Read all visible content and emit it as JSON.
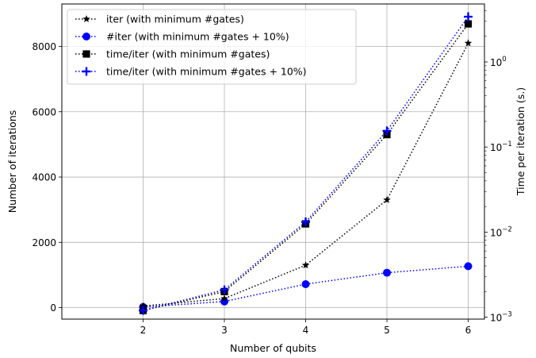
{
  "chart_data": {
    "type": "line",
    "title": "",
    "xlabel": "Number of qubits",
    "ylabel": "Number of iterations",
    "y2label": "Time per iteration (s.)",
    "x": [
      2,
      3,
      4,
      5,
      6
    ],
    "x_ticks": [
      "2",
      "3",
      "4",
      "5",
      "6"
    ],
    "xlim": [
      1.0,
      6.2
    ],
    "ylim": [
      -350,
      9300
    ],
    "y_ticks": [
      "0",
      "2000",
      "4000",
      "6000",
      "8000"
    ],
    "y2_scale": "log",
    "y2lim": [
      0.00095,
      4.8
    ],
    "y2_ticks": [
      {
        "base": "10",
        "exp": "−3"
      },
      {
        "base": "10",
        "exp": "−2"
      },
      {
        "base": "10",
        "exp": "−1"
      },
      {
        "base": "10",
        "exp": "0"
      }
    ],
    "grid": true,
    "legend_position": "top-left",
    "series": [
      {
        "name": "iter (with minimum #gates)",
        "axis": "left",
        "color": "#000000",
        "marker": "star",
        "values": [
          50,
          280,
          1300,
          3300,
          8100
        ]
      },
      {
        "name": "#iter (with minimum #gates + 10%)",
        "axis": "left",
        "color": "#0000ff",
        "marker": "circle",
        "values": [
          20,
          190,
          720,
          1070,
          1270
        ]
      },
      {
        "name": "time/iter (with minimum #gates)",
        "axis": "right",
        "color": "#000000",
        "marker": "square",
        "values": [
          0.0012,
          0.002,
          0.0125,
          0.14,
          2.8
        ]
      },
      {
        "name": "time/iter (with minimum #gates + 10%)",
        "axis": "right",
        "color": "#0000ff",
        "marker": "plus",
        "values": [
          0.0012,
          0.0021,
          0.0132,
          0.155,
          3.4
        ]
      }
    ]
  }
}
